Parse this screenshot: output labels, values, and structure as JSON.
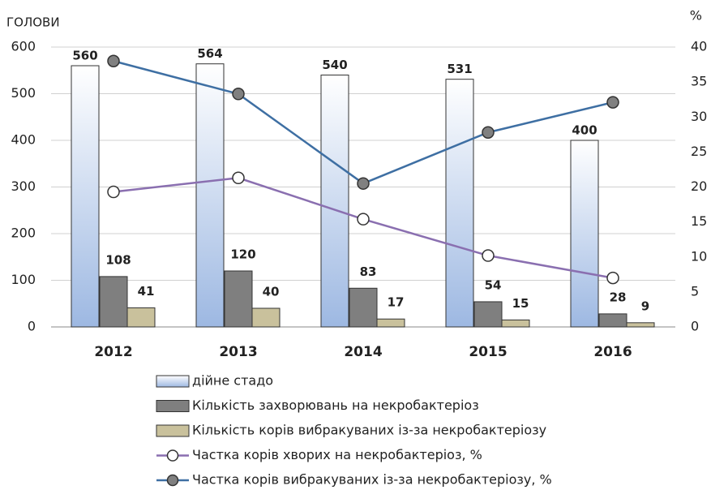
{
  "chart_data": {
    "type": "bar",
    "y_label": "ГОЛОВИ",
    "y2_label": "%",
    "categories": [
      "2012",
      "2013",
      "2014",
      "2015",
      "2016"
    ],
    "series": [
      {
        "name": "дійне стадо",
        "type": "bar",
        "color": "#9db8e2",
        "values": [
          560,
          564,
          540,
          531,
          400
        ]
      },
      {
        "name": "Кількість захворювань на некробактеріоз",
        "type": "bar",
        "color": "#7f7f7f",
        "values": [
          108,
          120,
          83,
          54,
          28
        ]
      },
      {
        "name": "Кількість корів вибракуваних із-за некробактеріозу",
        "type": "bar",
        "color": "#c9c19c",
        "values": [
          41,
          40,
          17,
          15,
          9
        ]
      },
      {
        "name": "Частка корів хворих на некробактеріоз, %",
        "type": "line",
        "axis": "y2",
        "color": "#8a6fb0",
        "marker_color": "#ffffff",
        "values": [
          19.3,
          21.3,
          15.4,
          10.2,
          7.0
        ]
      },
      {
        "name": "Частка корів вибракуваних із-за некробактеріозу, %",
        "type": "line",
        "axis": "y2",
        "color": "#3e6fa3",
        "marker_color": "#808080",
        "values": [
          38.0,
          33.3,
          20.5,
          27.8,
          32.1
        ]
      }
    ],
    "ylim": [
      0,
      600
    ],
    "yticks": [
      0,
      100,
      200,
      300,
      400,
      500,
      600
    ],
    "y2lim": [
      0,
      40
    ],
    "y2ticks": [
      0,
      5,
      10,
      15,
      20,
      25,
      30,
      35,
      40
    ],
    "grid": true
  }
}
